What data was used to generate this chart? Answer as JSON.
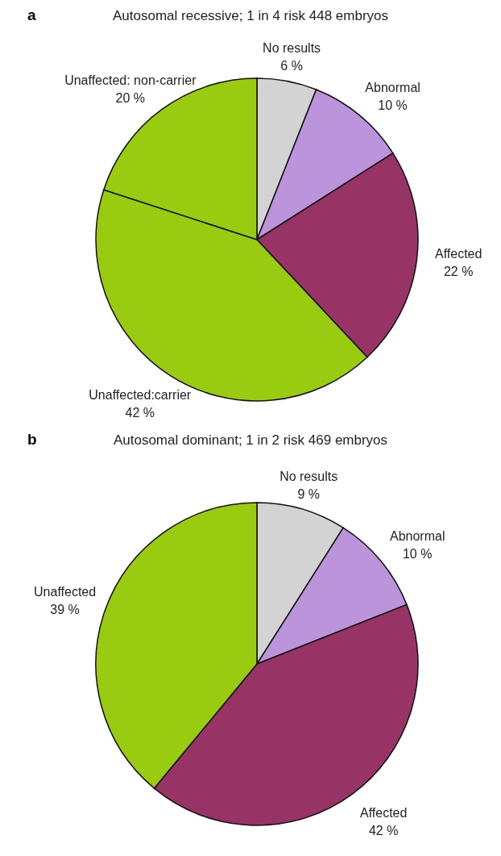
{
  "chart_data": [
    {
      "type": "pie",
      "title": "Autosomal recessive; 1 in 4 risk 448 embryos",
      "annotations": [
        "a"
      ],
      "categories": [
        "No results",
        "Abnormal",
        "Affected",
        "Unaffected:carrier",
        "Unaffected: non-carrier"
      ],
      "values": [
        6,
        10,
        22,
        42,
        20
      ],
      "value_labels": [
        "6 %",
        "10 %",
        "22 %",
        "42 %",
        "20 %"
      ],
      "colors": [
        "#d3d3d3",
        "#bb94dc",
        "#983366",
        "#99cc11",
        "#99cc11"
      ],
      "legend": false
    },
    {
      "type": "pie",
      "title": "Autosomal dominant; 1 in 2 risk 469 embryos",
      "annotations": [
        "b"
      ],
      "categories": [
        "No results",
        "Abnormal",
        "Affected",
        "Unaffected"
      ],
      "values": [
        9,
        10,
        42,
        39
      ],
      "value_labels": [
        "9 %",
        "10 %",
        "42 %",
        "39 %"
      ],
      "colors": [
        "#d3d3d3",
        "#bb94dc",
        "#983366",
        "#99cc11"
      ],
      "legend": false
    }
  ]
}
